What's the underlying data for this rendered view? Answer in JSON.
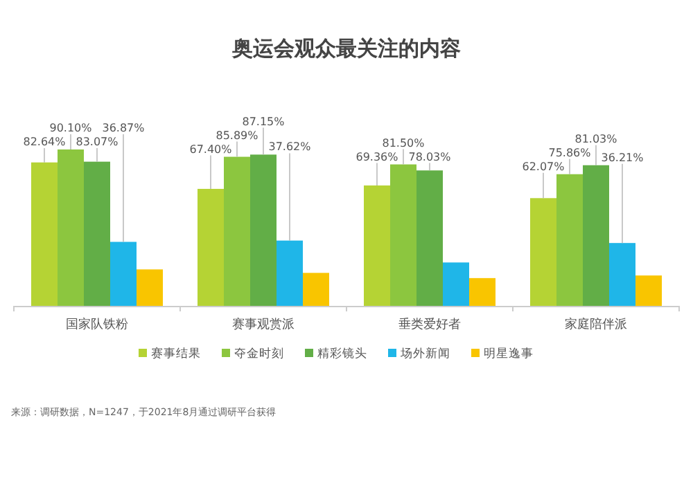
{
  "chart_data": {
    "type": "bar",
    "title": "奥运会观众最关注的内容",
    "categories": [
      "国家队铁粉",
      "赛事观赏派",
      "垂类爱好者",
      "家庭陪伴派"
    ],
    "series": [
      {
        "name": "赛事结果",
        "color": "#b5d334",
        "values": [
          82.64,
          67.4,
          69.36,
          62.07
        ],
        "value_labels": [
          "82.64%",
          "67.40%",
          "69.36%",
          "62.07%"
        ]
      },
      {
        "name": "夺金时刻",
        "color": "#8cc63f",
        "values": [
          90.1,
          85.89,
          81.5,
          75.86
        ],
        "value_labels": [
          "90.10%",
          "85.89%",
          "81.50%",
          "75.86%"
        ]
      },
      {
        "name": "精彩镜头",
        "color": "#62ae47",
        "values": [
          83.07,
          87.15,
          78.03,
          81.03
        ],
        "value_labels": [
          "83.07%",
          "87.15%",
          "78.03%",
          "81.03%"
        ]
      },
      {
        "name": "场外新闻",
        "color": "#1fb6e8",
        "values": [
          36.87,
          37.62,
          25,
          36.21
        ],
        "value_labels": [
          "36.87%",
          "37.62%",
          null,
          "36.21%"
        ]
      },
      {
        "name": "明星逸事",
        "color": "#f9c500",
        "values": [
          21,
          19,
          16,
          17.5
        ],
        "value_labels": [
          null,
          null,
          null,
          null
        ]
      }
    ],
    "legend": "bottom",
    "grid": false,
    "annotations": [
      "来源：调研数据，N=1247，于2021年8月通过调研平台获得"
    ]
  }
}
